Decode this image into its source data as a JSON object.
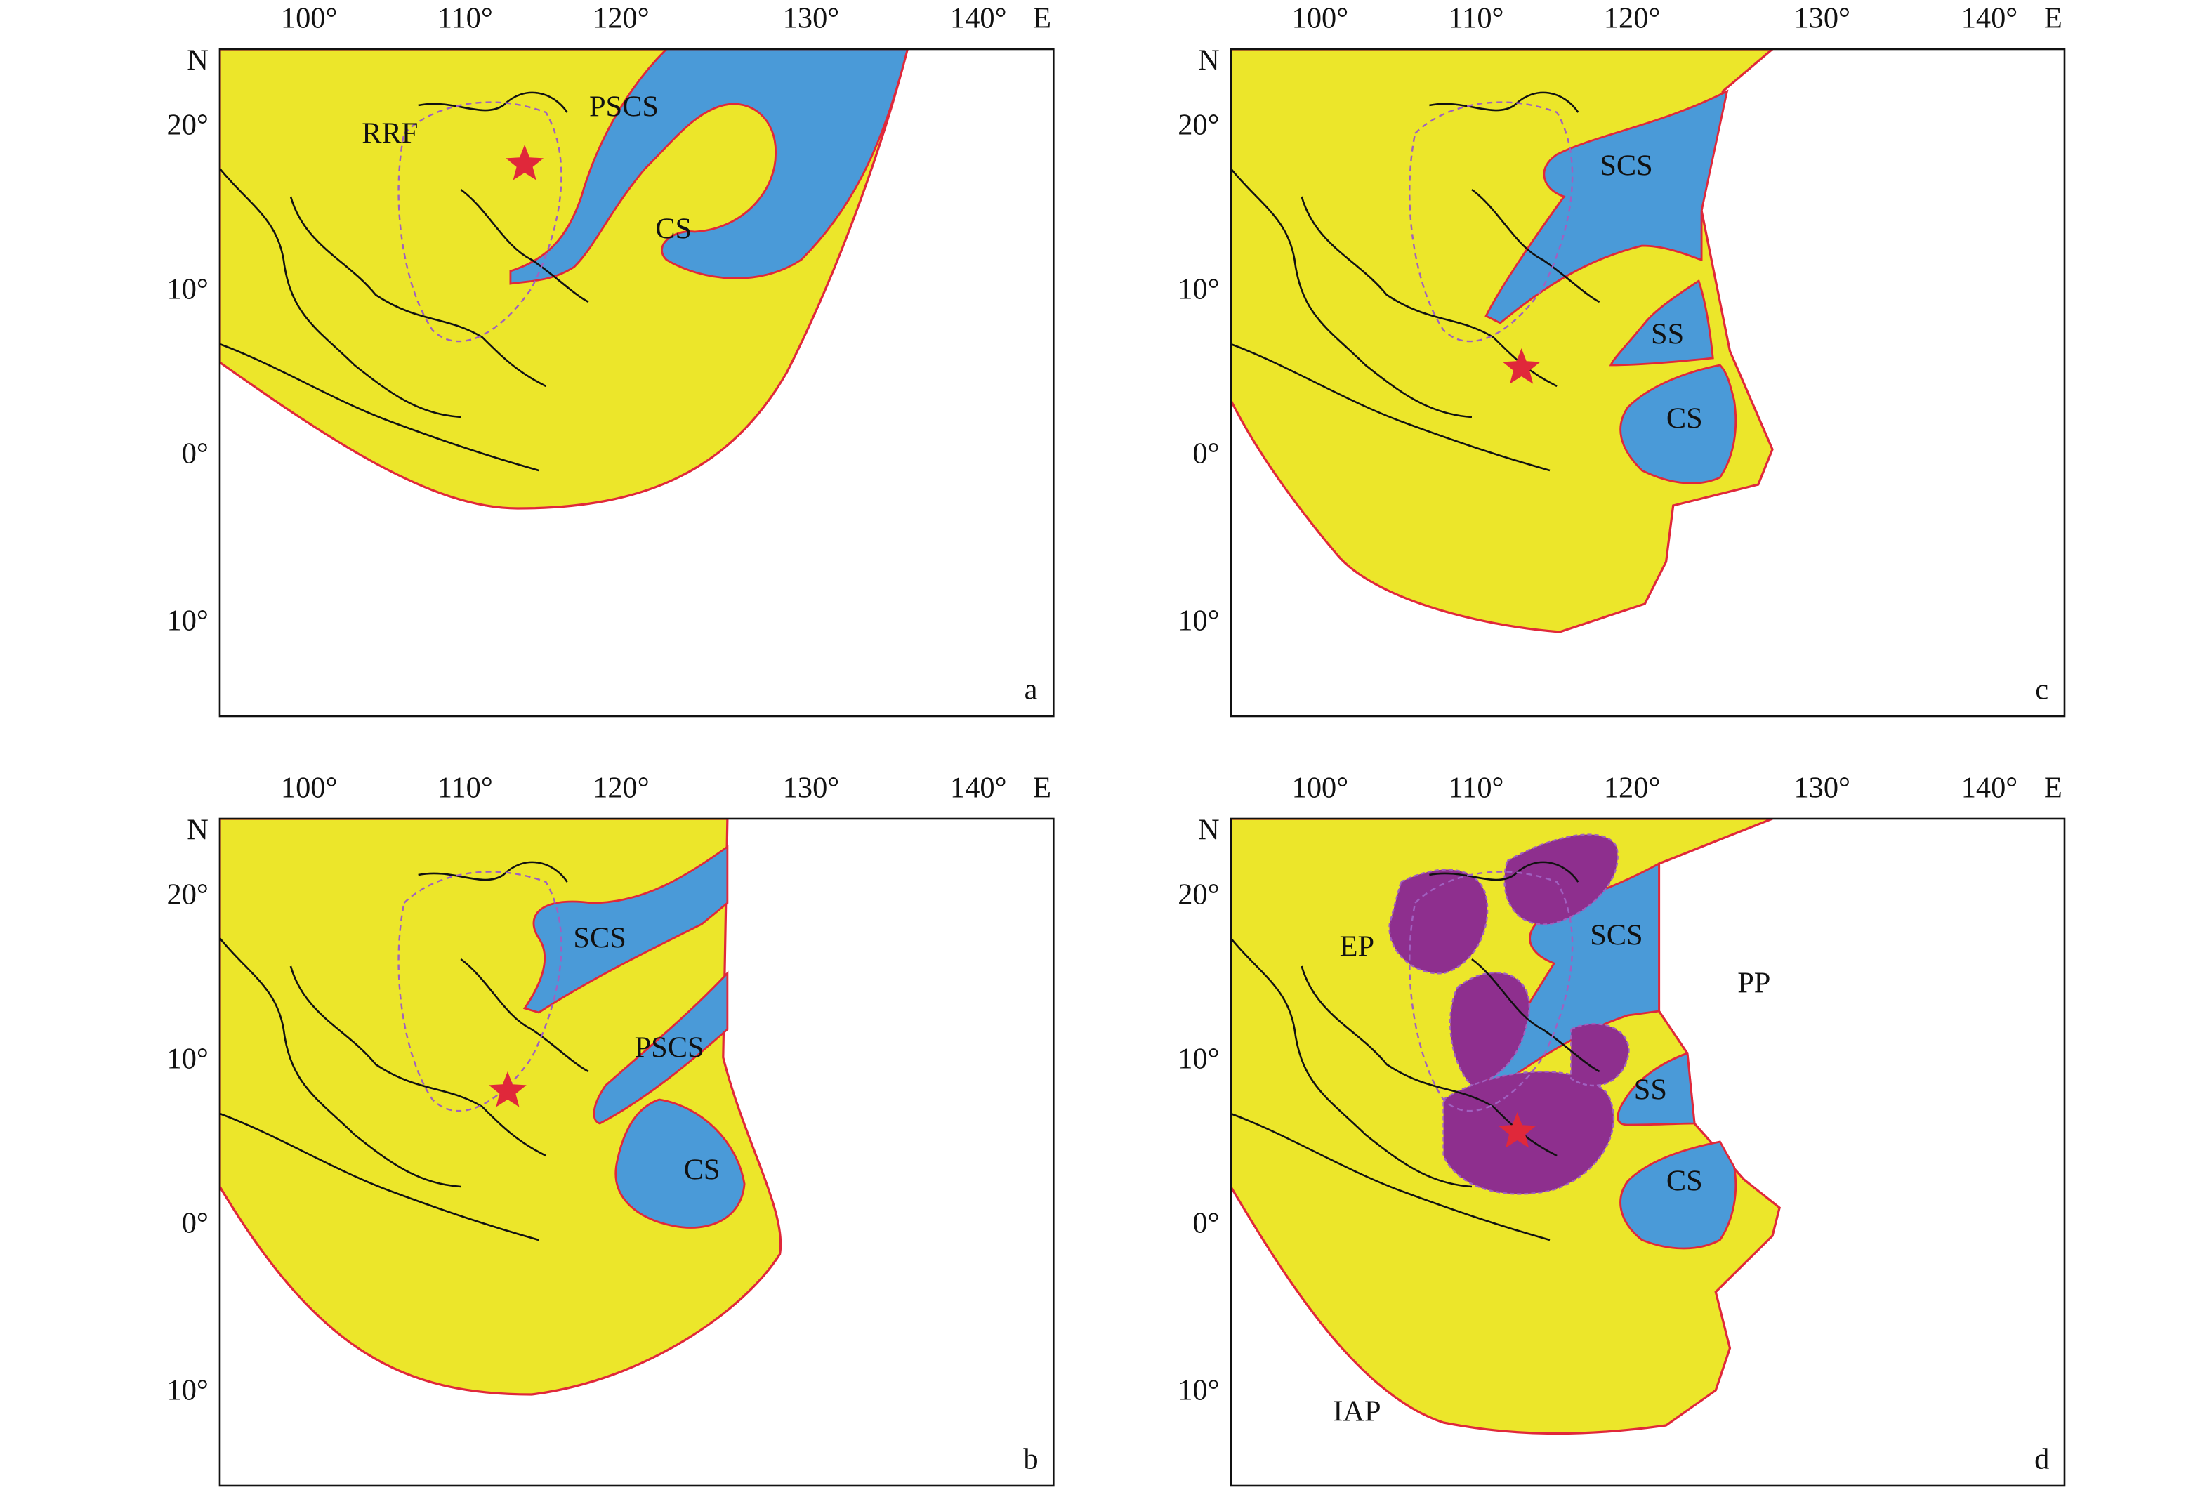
{
  "panels": [
    {
      "id": "a",
      "lon_ticks": [
        "100°",
        "110°",
        "120°",
        "130°",
        "140°"
      ],
      "lon_unit": "E",
      "lat_unit": "N",
      "lat_ticks": [
        "20°",
        "10°",
        "0°",
        "10°"
      ],
      "labels": [
        "RRF",
        "PSCS",
        "CS"
      ]
    },
    {
      "id": "b",
      "lon_ticks": [
        "100°",
        "110°",
        "120°",
        "130°",
        "140°"
      ],
      "lon_unit": "E",
      "lat_unit": "N",
      "lat_ticks": [
        "20°",
        "10°",
        "0°",
        "10°"
      ],
      "labels": [
        "SCS",
        "PSCS",
        "CS"
      ]
    },
    {
      "id": "c",
      "lon_ticks": [
        "100°",
        "110°",
        "120°",
        "130°",
        "140°"
      ],
      "lon_unit": "E",
      "lat_unit": "N",
      "lat_ticks": [
        "20°",
        "10°",
        "0°",
        "10°"
      ],
      "labels": [
        "SCS",
        "SS",
        "CS"
      ]
    },
    {
      "id": "d",
      "lon_ticks": [
        "100°",
        "110°",
        "120°",
        "130°",
        "140°"
      ],
      "lon_unit": "E",
      "lat_unit": "N",
      "lat_ticks": [
        "20°",
        "10°",
        "0°",
        "10°"
      ],
      "labels": [
        "EP",
        "SCS",
        "PP",
        "SS",
        "CS",
        "IAP"
      ]
    }
  ]
}
